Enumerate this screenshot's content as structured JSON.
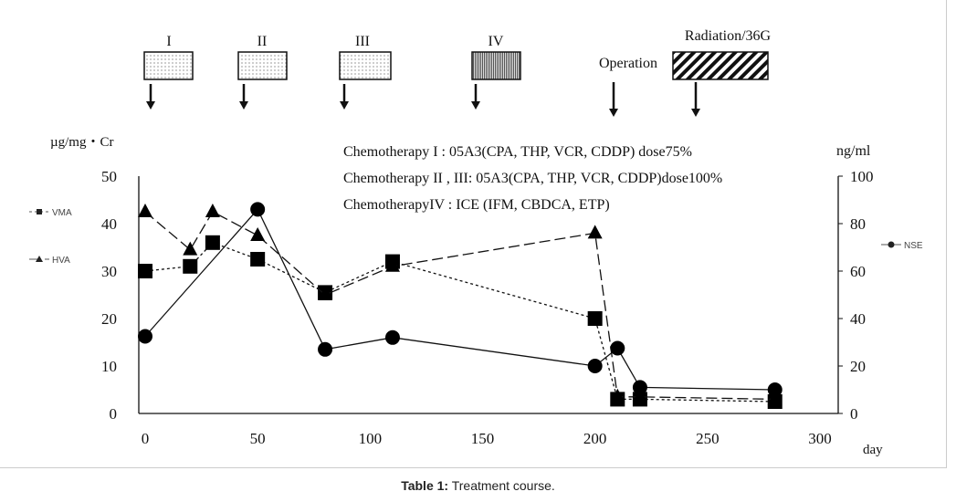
{
  "chart_data": {
    "type": "line",
    "title": "",
    "xlabel": "day",
    "ylabel_left": "µg/mg・Cr",
    "ylabel_right": "ng/ml",
    "xlim": [
      0,
      300
    ],
    "ylim_left": [
      0,
      50
    ],
    "ylim_right": [
      0,
      100
    ],
    "x_ticks": [
      "0",
      "50",
      "100",
      "150",
      "200",
      "250",
      "300"
    ],
    "y_ticks_left": [
      "0",
      "10",
      "20",
      "30",
      "40",
      "50"
    ],
    "y_ticks_right": [
      "0",
      "20",
      "40",
      "60",
      "80",
      "100"
    ],
    "grid": false,
    "series": [
      {
        "name": "VMA",
        "axis": "left",
        "marker": "square",
        "line": "dotted",
        "x": [
          0,
          20,
          30,
          50,
          80,
          110,
          200,
          210,
          220,
          280
        ],
        "y": [
          30,
          31,
          36,
          32.5,
          25.5,
          32,
          20,
          3,
          3,
          2.5
        ]
      },
      {
        "name": "HVA",
        "axis": "left",
        "marker": "triangle",
        "line": "dashed",
        "x": [
          0,
          20,
          30,
          50,
          80,
          110,
          200,
          210,
          220,
          280
        ],
        "y": [
          42.5,
          34.5,
          42.5,
          37.5,
          25,
          31,
          38,
          3.5,
          3.5,
          3
        ]
      },
      {
        "name": "NSE",
        "axis": "right",
        "marker": "circle",
        "line": "solid",
        "x": [
          0,
          50,
          80,
          110,
          200,
          210,
          220,
          280
        ],
        "y": [
          32.5,
          86,
          27,
          32,
          20,
          27.5,
          11,
          10
        ]
      }
    ],
    "treatments": [
      {
        "label": "I",
        "pattern": "dots"
      },
      {
        "label": "II",
        "pattern": "dots"
      },
      {
        "label": "III",
        "pattern": "dots"
      },
      {
        "label": "IV",
        "pattern": "dense"
      },
      {
        "label": "Operation",
        "pattern": "none"
      },
      {
        "label": "Radiation/36G",
        "pattern": "hatch"
      }
    ],
    "annotations": [
      "Chemotherapy I : 05A3(CPA, THP, VCR, CDDP) dose75%",
      "Chemotherapy II , III: 05A3(CPA, THP, VCR, CDDP)dose100%",
      "ChemotherapyIV  : ICE (IFM, CBDCA, ETP)"
    ]
  },
  "caption": {
    "label": "Table 1:",
    "text": " Treatment course."
  }
}
